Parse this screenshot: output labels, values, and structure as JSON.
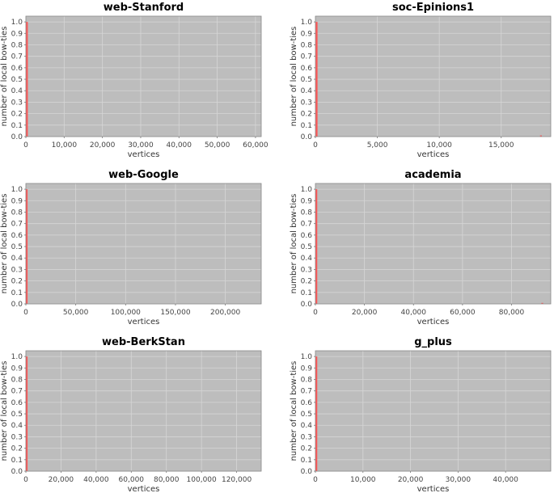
{
  "chart_data": [
    {
      "type": "bar",
      "title": "web-Stanford",
      "xlabel": "vertices",
      "ylabel": "number of local bow-ties",
      "xlim": [
        0,
        61500
      ],
      "ylim": [
        0,
        1.05
      ],
      "xticks": [
        0,
        10000,
        20000,
        30000,
        40000,
        50000,
        60000
      ],
      "xtick_labels": [
        "0",
        "10,000",
        "20,000",
        "30,000",
        "40,000",
        "50,000",
        "60,000"
      ],
      "yticks": [
        0,
        0.1,
        0.2,
        0.3,
        0.4,
        0.5,
        0.6,
        0.7,
        0.8,
        0.9,
        1.0
      ],
      "ytick_labels": [
        "0.0",
        "0.1",
        "0.2",
        "0.3",
        "0.4",
        "0.5",
        "0.6",
        "0.7",
        "0.8",
        "0.9",
        "1.0"
      ],
      "grid": true,
      "bars": [
        {
          "x": 250,
          "y": 1.0
        }
      ]
    },
    {
      "type": "bar",
      "title": "soc-Epinions1",
      "xlabel": "vertices",
      "ylabel": "number of local bow-ties",
      "xlim": [
        0,
        19000
      ],
      "ylim": [
        0,
        1.05
      ],
      "xticks": [
        0,
        5000,
        10000,
        15000
      ],
      "xtick_labels": [
        "0",
        "5,000",
        "10,000",
        "15,000"
      ],
      "yticks": [
        0,
        0.1,
        0.2,
        0.3,
        0.4,
        0.5,
        0.6,
        0.7,
        0.8,
        0.9,
        1.0
      ],
      "ytick_labels": [
        "0.0",
        "0.1",
        "0.2",
        "0.3",
        "0.4",
        "0.5",
        "0.6",
        "0.7",
        "0.8",
        "0.9",
        "1.0"
      ],
      "grid": true,
      "bars": [
        {
          "x": 90,
          "y": 1.0
        },
        {
          "x": 18200,
          "y": 0.01
        }
      ]
    },
    {
      "type": "bar",
      "title": "web-Google",
      "xlabel": "vertices",
      "ylabel": "number of local bow-ties",
      "xlim": [
        0,
        236000
      ],
      "ylim": [
        0,
        1.05
      ],
      "xticks": [
        0,
        50000,
        100000,
        150000,
        200000
      ],
      "xtick_labels": [
        "0",
        "50,000",
        "100,000",
        "150,000",
        "200,000"
      ],
      "yticks": [
        0,
        0.1,
        0.2,
        0.3,
        0.4,
        0.5,
        0.6,
        0.7,
        0.8,
        0.9,
        1.0
      ],
      "ytick_labels": [
        "0.0",
        "0.1",
        "0.2",
        "0.3",
        "0.4",
        "0.5",
        "0.6",
        "0.7",
        "0.8",
        "0.9",
        "1.0"
      ],
      "grid": true,
      "bars": [
        {
          "x": 700,
          "y": 1.0
        }
      ]
    },
    {
      "type": "bar",
      "title": "academia",
      "xlabel": "vertices",
      "ylabel": "number of local bow-ties",
      "xlim": [
        0,
        96000
      ],
      "ylim": [
        0,
        1.05
      ],
      "xticks": [
        0,
        20000,
        40000,
        60000,
        80000
      ],
      "xtick_labels": [
        "0",
        "20,000",
        "40,000",
        "60,000",
        "80,000"
      ],
      "yticks": [
        0,
        0.1,
        0.2,
        0.3,
        0.4,
        0.5,
        0.6,
        0.7,
        0.8,
        0.9,
        1.0
      ],
      "ytick_labels": [
        "0.0",
        "0.1",
        "0.2",
        "0.3",
        "0.4",
        "0.5",
        "0.6",
        "0.7",
        "0.8",
        "0.9",
        "1.0"
      ],
      "grid": true,
      "bars": [
        {
          "x": 350,
          "y": 1.0
        },
        {
          "x": 92500,
          "y": 0.005
        }
      ]
    },
    {
      "type": "bar",
      "title": "web-BerkStan",
      "xlabel": "vertices",
      "ylabel": "number of local bow-ties",
      "xlim": [
        0,
        134000
      ],
      "ylim": [
        0,
        1.05
      ],
      "xticks": [
        0,
        20000,
        40000,
        60000,
        80000,
        100000,
        120000
      ],
      "xtick_labels": [
        "0",
        "20,000",
        "40,000",
        "60,000",
        "80,000",
        "100,000",
        "120,000"
      ],
      "yticks": [
        0,
        0.1,
        0.2,
        0.3,
        0.4,
        0.5,
        0.6,
        0.7,
        0.8,
        0.9,
        1.0
      ],
      "ytick_labels": [
        "0.0",
        "0.1",
        "0.2",
        "0.3",
        "0.4",
        "0.5",
        "0.6",
        "0.7",
        "0.8",
        "0.9",
        "1.0"
      ],
      "grid": true,
      "bars": [
        {
          "x": 400,
          "y": 1.0
        }
      ]
    },
    {
      "type": "bar",
      "title": "g_plus",
      "xlabel": "vertices",
      "ylabel": "number of local bow-ties",
      "xlim": [
        0,
        49500
      ],
      "ylim": [
        0,
        1.05
      ],
      "xticks": [
        0,
        10000,
        20000,
        30000,
        40000
      ],
      "xtick_labels": [
        "0",
        "10,000",
        "20,000",
        "30,000",
        "40,000"
      ],
      "yticks": [
        0,
        0.1,
        0.2,
        0.3,
        0.4,
        0.5,
        0.6,
        0.7,
        0.8,
        0.9,
        1.0
      ],
      "ytick_labels": [
        "0.0",
        "0.1",
        "0.2",
        "0.3",
        "0.4",
        "0.5",
        "0.6",
        "0.7",
        "0.8",
        "0.9",
        "1.0"
      ],
      "grid": true,
      "bars": [
        {
          "x": 180,
          "y": 1.0
        }
      ]
    }
  ],
  "colors": {
    "plot_background": "#bdbdbd",
    "grid": "#d6d6d6",
    "bar": "#ff5555",
    "frame": "#888888"
  }
}
